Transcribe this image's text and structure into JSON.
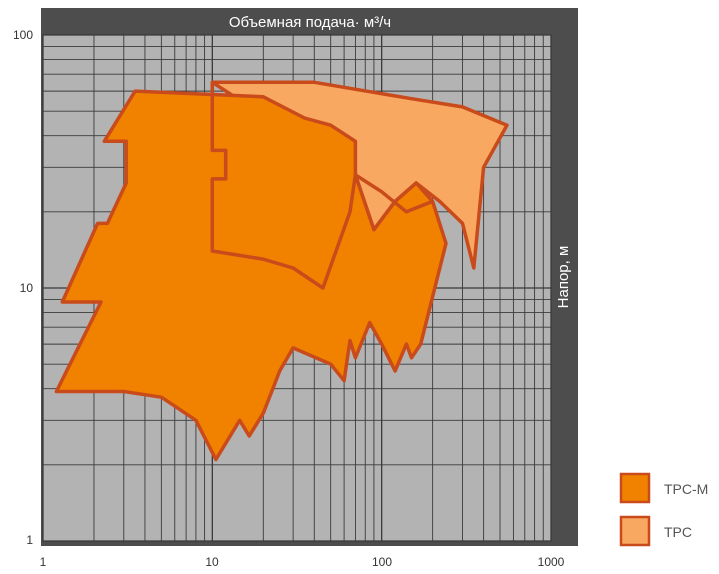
{
  "chart_data": {
    "type": "area",
    "title": "",
    "xlabel": "Объемная подача· м³/ч",
    "ylabel": "Напор, м",
    "xscale": "log",
    "yscale": "log",
    "xlim": [
      1,
      1000
    ],
    "ylim": [
      1,
      100
    ],
    "x_tick_labels": [
      "1",
      "10",
      "100",
      "1000"
    ],
    "y_tick_labels": [
      "1",
      "10",
      "100"
    ],
    "grid": true,
    "legend_position": "bottom-right",
    "colors": {
      "plot_background": "#b3b3b3",
      "frame": "#4d4d4d",
      "grid": "#3a3a3a",
      "series_outline": "#c94a1a"
    },
    "series": [
      {
        "name": "TPC",
        "color": "#f8a860",
        "points": [
          [
            10,
            65
          ],
          [
            40,
            65
          ],
          [
            150,
            56
          ],
          [
            300,
            52
          ],
          [
            550,
            44
          ],
          [
            400,
            30
          ],
          [
            350,
            12
          ],
          [
            300,
            18
          ],
          [
            220,
            22
          ],
          [
            160,
            26
          ],
          [
            120,
            22
          ],
          [
            90,
            17
          ],
          [
            70,
            28
          ]
        ]
      },
      {
        "name": "TPC-M",
        "color": "#f08200",
        "points": [
          [
            3.5,
            60
          ],
          [
            20,
            57
          ],
          [
            35,
            47
          ],
          [
            50,
            44
          ],
          [
            70,
            38
          ],
          [
            70,
            28
          ],
          [
            90,
            17
          ],
          [
            120,
            22
          ],
          [
            160,
            26
          ],
          [
            200,
            22
          ],
          [
            240,
            15
          ],
          [
            170,
            6
          ],
          [
            150,
            5.3
          ],
          [
            140,
            6
          ],
          [
            120,
            4.7
          ],
          [
            100,
            6
          ],
          [
            85,
            7.3
          ],
          [
            70,
            5.3
          ],
          [
            65,
            6.2
          ],
          [
            60,
            4.3
          ],
          [
            50,
            5
          ],
          [
            30,
            5.8
          ],
          [
            25,
            4.7
          ],
          [
            20,
            3.2
          ],
          [
            16.5,
            2.6
          ],
          [
            14.5,
            3
          ],
          [
            10.5,
            2.1
          ],
          [
            8,
            3
          ],
          [
            5,
            3.7
          ],
          [
            3,
            3.9
          ],
          [
            1.2,
            3.9
          ],
          [
            2.2,
            8.8
          ],
          [
            1.3,
            8.8
          ],
          [
            2.1,
            18
          ],
          [
            2.4,
            18
          ],
          [
            3.1,
            26
          ],
          [
            3.1,
            38
          ],
          [
            2.3,
            38
          ]
        ]
      }
    ],
    "inner_lines": [
      [
        [
          10,
          65
        ],
        [
          10,
          35
        ],
        [
          12,
          35
        ],
        [
          12,
          27
        ],
        [
          10,
          27
        ],
        [
          10,
          14
        ],
        [
          20,
          13
        ],
        [
          30,
          12
        ],
        [
          45,
          10
        ],
        [
          65,
          20
        ],
        [
          70,
          28
        ]
      ],
      [
        [
          70,
          28
        ],
        [
          100,
          24
        ],
        [
          140,
          20
        ],
        [
          200,
          22
        ]
      ]
    ]
  },
  "legend": {
    "items": [
      {
        "label": "TPC-M",
        "color": "#f08200"
      },
      {
        "label": "TPC",
        "color": "#f8a860"
      }
    ]
  }
}
